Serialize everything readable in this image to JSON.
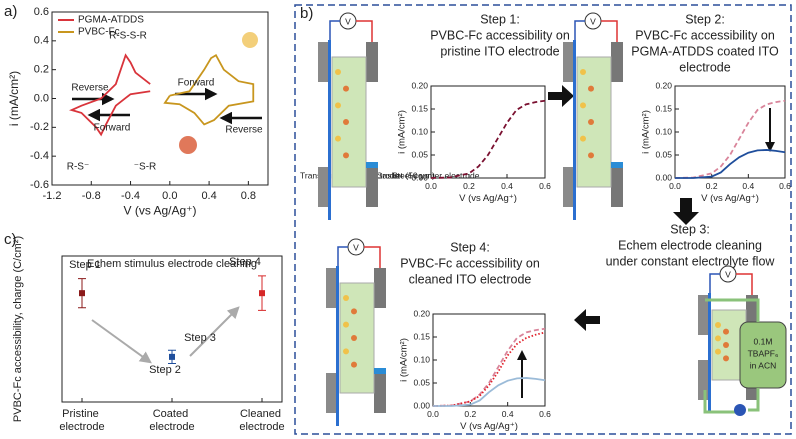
{
  "chart_data": [
    {
      "type": "line",
      "xlabel": "V (vs Ag/Ag⁺)",
      "ylabel": "i (mA/cm²)",
      "xlim": [
        -1.2,
        1.0
      ],
      "ylim": [
        -0.6,
        0.6
      ],
      "xticks": [
        -1.2,
        -0.8,
        -0.4,
        {
          "value": 0,
          "label": "0.0"
        },
        0.4,
        0.8
      ],
      "yticks": [
        -0.6,
        -0.4,
        -0.2,
        {
          "value": 0,
          "label": "0.0"
        },
        0.2,
        0.4,
        0.6
      ],
      "legend": "upper left",
      "series": [
        {
          "name": "PGMA-ATDDS",
          "color": "#d9343b",
          "x": [
            -0.2,
            -0.4,
            -0.55,
            -0.65,
            -0.7,
            -0.75,
            -0.9,
            -1.0,
            -0.9,
            -0.7,
            -0.55,
            -0.45,
            -0.4,
            -0.35,
            -0.2
          ],
          "values": [
            0.05,
            0.03,
            -0.05,
            -0.18,
            -0.25,
            -0.2,
            -0.1,
            -0.08,
            -0.05,
            0.0,
            0.1,
            0.3,
            0.25,
            0.18,
            0.1
          ]
        },
        {
          "name": "PVBC-Fc",
          "color": "#c8961e",
          "x": [
            0,
            0.2,
            0.35,
            0.42,
            0.47,
            0.55,
            0.7,
            0.85,
            0.85,
            0.6,
            0.45,
            0.35,
            0.25,
            0.1,
            -0.05,
            0
          ],
          "values": [
            0.02,
            0.05,
            0.2,
            0.28,
            0.3,
            0.2,
            0.12,
            0.1,
            -0.02,
            -0.05,
            -0.15,
            -0.18,
            -0.1,
            -0.04,
            -0.03,
            0.02
          ]
        }
      ],
      "annotations": [
        "R-S-S-R",
        "Reverse",
        "Forward",
        "Forward",
        "Reverse",
        "R-S⁻",
        "⁻S-R"
      ]
    },
    {
      "type": "errorbar",
      "title": "Echem stimulus electrode cleaning",
      "ylabel": "PVBC-Fc accessibility, charge (C/cm²)",
      "ylim": [
        0,
        1.1
      ],
      "categories": [
        "Pristine electrode",
        "Coated electrode",
        "Cleaned electrode"
      ],
      "values": [
        0.82,
        0.34,
        0.82
      ],
      "errors": [
        0.11,
        0.05,
        0.13
      ],
      "colors": [
        "#8b1a1a",
        "#1f4e9c",
        "#d62728"
      ],
      "annotations": [
        "Step 1",
        "Step 2",
        "Step 3",
        "Step 4"
      ]
    },
    {
      "type": "line",
      "xlabel": "V (vs Ag/Ag⁺)",
      "ylabel": "i (mA/cm²)",
      "xlim": [
        0,
        0.6
      ],
      "ylim": [
        0,
        0.2
      ],
      "xticks": [
        {
          "value": 0,
          "label": "0.0"
        },
        0.2,
        0.4,
        0.6
      ],
      "yticks": [
        {
          "value": 0,
          "label": "0.00"
        },
        {
          "value": 0.05,
          "label": "0.05"
        },
        {
          "value": 0.1,
          "label": "0.10"
        },
        {
          "value": 0.15,
          "label": "0.15"
        },
        {
          "value": 0.2,
          "label": "0.20"
        }
      ],
      "x": [
        0,
        0.1,
        0.2,
        0.25,
        0.3,
        0.35,
        0.4,
        0.45,
        0.5,
        0.55,
        0.6
      ],
      "series": [
        {
          "color": "#7a1030",
          "style": "dashed",
          "values": [
            0,
            0.001,
            0.01,
            0.025,
            0.05,
            0.085,
            0.12,
            0.148,
            0.16,
            0.165,
            0.168
          ]
        }
      ]
    },
    {
      "type": "line",
      "xlabel": "V (vs Ag/Ag⁺)",
      "ylabel": "i (mA/cm²)",
      "xlim": [
        0,
        0.6
      ],
      "ylim": [
        0,
        0.2
      ],
      "xticks": [
        {
          "value": 0,
          "label": "0.0"
        },
        0.2,
        0.4,
        0.6
      ],
      "yticks": [
        {
          "value": 0,
          "label": "0.00"
        },
        {
          "value": 0.05,
          "label": "0.05"
        },
        {
          "value": 0.1,
          "label": "0.10"
        },
        {
          "value": 0.15,
          "label": "0.15"
        },
        {
          "value": 0.2,
          "label": "0.20"
        }
      ],
      "x": [
        0,
        0.1,
        0.2,
        0.25,
        0.3,
        0.35,
        0.4,
        0.45,
        0.5,
        0.55,
        0.6
      ],
      "series": [
        {
          "color": "#d9849a",
          "style": "dashed",
          "values": [
            0,
            0.001,
            0.01,
            0.025,
            0.05,
            0.085,
            0.12,
            0.148,
            0.16,
            0.165,
            0.168
          ]
        },
        {
          "color": "#1f4e9c",
          "style": "solid",
          "values": [
            0,
            0,
            0.003,
            0.012,
            0.03,
            0.045,
            0.055,
            0.06,
            0.061,
            0.059,
            0.056
          ]
        }
      ]
    },
    {
      "type": "line",
      "xlabel": "V (vs Ag/Ag⁺)",
      "ylabel": "i (mA/cm²)",
      "xlim": [
        0,
        0.6
      ],
      "ylim": [
        0,
        0.2
      ],
      "xticks": [
        {
          "value": 0,
          "label": "0.0"
        },
        0.2,
        0.4,
        0.6
      ],
      "yticks": [
        {
          "value": 0,
          "label": "0.00"
        },
        {
          "value": 0.05,
          "label": "0.05"
        },
        {
          "value": 0.1,
          "label": "0.10"
        },
        {
          "value": 0.15,
          "label": "0.15"
        },
        {
          "value": 0.2,
          "label": "0.20"
        }
      ],
      "x": [
        0,
        0.1,
        0.2,
        0.25,
        0.3,
        0.35,
        0.4,
        0.45,
        0.5,
        0.55,
        0.6
      ],
      "series": [
        {
          "color": "#d9849a",
          "style": "dashed",
          "values": [
            0,
            0.001,
            0.01,
            0.025,
            0.05,
            0.085,
            0.12,
            0.148,
            0.16,
            0.165,
            0.168
          ]
        },
        {
          "color": "#e0202a",
          "style": "dotted",
          "values": [
            0,
            0.001,
            0.01,
            0.022,
            0.045,
            0.075,
            0.11,
            0.135,
            0.148,
            0.155,
            0.16
          ]
        },
        {
          "color": "#9bbbd8",
          "style": "solid",
          "values": [
            0,
            0,
            0.003,
            0.012,
            0.03,
            0.045,
            0.055,
            0.06,
            0.061,
            0.059,
            0.056
          ]
        }
      ]
    }
  ],
  "diagram": {
    "panels": [
      "a)",
      "b)",
      "c)"
    ],
    "meter_label": "V",
    "step1": [
      "Step 1:",
      "PVBC-Fc accessibility on",
      "pristine ITO electrode"
    ],
    "step2": [
      "Step 2:",
      "PVBC-Fc accessibility on",
      "PGMA-ATDDS coated ITO",
      "electrode"
    ],
    "step3": [
      "Step 3:",
      "Echem electrode cleaning",
      "under constant electrolyte flow"
    ],
    "step4": [
      "Step 4:",
      "PVBC-Fc accessibility on",
      "cleaned ITO electrode"
    ],
    "parts": [
      "Transparent ITO electrode",
      "PTFE Gasket (50 μm)",
      "Steel counter electrode"
    ],
    "bottle": [
      "0.1M",
      "TBAPF₆",
      "in ACN"
    ]
  }
}
